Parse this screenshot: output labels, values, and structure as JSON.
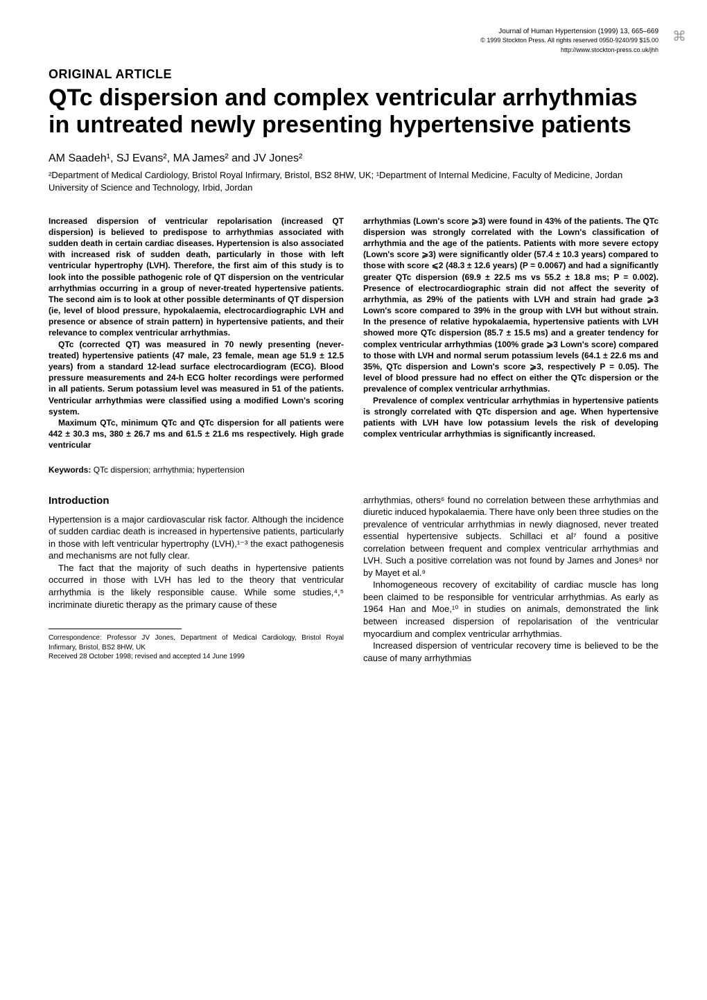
{
  "journal": {
    "line1": "Journal of Human Hypertension (1999) 13, 665–669",
    "line2": "© 1999 Stockton Press. All rights reserved 0950-9240/99 $15.00",
    "url": "http://www.stockton-press.co.uk/jhh"
  },
  "article_type": "ORIGINAL ARTICLE",
  "title": "QTc dispersion and complex ventricular arrhythmias in untreated newly presenting hypertensive patients",
  "authors": "AM Saadeh¹, SJ Evans², MA James² and JV Jones²",
  "affiliations": "²Department of Medical Cardiology, Bristol Royal Infirmary, Bristol, BS2 8HW, UK; ¹Department of Internal Medicine, Faculty of Medicine, Jordan University of Science and Technology, Irbid, Jordan",
  "abstract": {
    "left": {
      "p1": "Increased dispersion of ventricular repolarisation (increased QT dispersion) is believed to predispose to arrhythmias associated with sudden death in certain cardiac diseases. Hypertension is also associated with increased risk of sudden death, particularly in those with left ventricular hypertrophy (LVH). Therefore, the first aim of this study is to look into the possible pathogenic role of QT dispersion on the ventricular arrhythmias occurring in a group of never-treated hypertensive patients. The second aim is to look at other possible determinants of QT dispersion (ie, level of blood pressure, hypokalaemia, electrocardiographic LVH and presence or absence of strain pattern) in hypertensive patients, and their relevance to complex ventricular arrhythmias.",
      "p2": "QTc (corrected QT) was measured in 70 newly presenting (never-treated) hypertensive patients (47 male, 23 female, mean age 51.9 ± 12.5 years) from a standard 12-lead surface electrocardiogram (ECG). Blood pressure measurements and 24-h ECG holter recordings were performed in all patients. Serum potassium level was measured in 51 of the patients. Ventricular arrhythmias were classified using a modified Lown's scoring system.",
      "p3": "Maximum QTc, minimum QTc and QTc dispersion for all patients were 442 ± 30.3 ms, 380 ± 26.7 ms and 61.5 ± 21.6 ms respectively. High grade ventricular"
    },
    "right": {
      "p1": "arrhythmias (Lown's score ⩾3) were found in 43% of the patients. The QTc dispersion was strongly correlated with the Lown's classification of arrhythmia and the age of the patients. Patients with more severe ectopy (Lown's score ⩾3) were significantly older (57.4 ± 10.3 years) compared to those with score ⩽2 (48.3 ± 12.6 years) (P = 0.0067) and had a significantly greater QTc dispersion (69.9 ± 22.5 ms vs 55.2 ± 18.8 ms; P = 0.002). Presence of electrocardiographic strain did not affect the severity of arrhythmia, as 29% of the patients with LVH and strain had grade ⩾3 Lown's score compared to 39% in the group with LVH but without strain. In the presence of relative hypokalaemia, hypertensive patients with LVH showed more QTc dispersion (85.7 ± 15.5 ms) and a greater tendency for complex ventricular arrhythmias (100% grade ⩾3 Lown's score) compared to those with LVH and normal serum potassium levels (64.1 ± 22.6 ms and 35%, QTc dispersion and Lown's score ⩾3, respectively P = 0.05). The level of blood pressure had no effect on either the QTc dispersion or the prevalence of complex ventricular arrhythmias.",
      "p2": "Prevalence of complex ventricular arrhythmias in hypertensive patients is strongly correlated with QTc dispersion and age. When hypertensive patients with LVH have low potassium levels the risk of developing complex ventricular arrhythmias is significantly increased."
    }
  },
  "keywords_label": "Keywords:",
  "keywords_text": " QTc dispersion; arrhythmia; hypertension",
  "introduction": {
    "heading": "Introduction",
    "left": {
      "p1": "Hypertension is a major cardiovascular risk factor. Although the incidence of sudden cardiac death is increased in hypertensive patients, particularly in those with left ventricular hypertrophy (LVH),¹⁻³ the exact pathogenesis and mechanisms are not fully clear.",
      "p2": "The fact that the majority of such deaths in hypertensive patients occurred in those with LVH has led to the theory that ventricular arrhythmia is the likely responsible cause. While some studies,⁴,⁵ incriminate diuretic therapy as the primary cause of these"
    },
    "right": {
      "p1": "arrhythmias, others⁶ found no correlation between these arrhythmias and diuretic induced hypokalaemia. There have only been three studies on the prevalence of ventricular arrhythmias in newly diagnosed, never treated essential hypertensive subjects. Schillaci et al⁷ found a positive correlation between frequent and complex ventricular arrhythmias and LVH. Such a positive correlation was not found by James and Jones⁸ nor by Mayet et al.⁹",
      "p2": "Inhomogeneous recovery of excitability of cardiac muscle has long been claimed to be responsible for ventricular arrhythmias. As early as 1964 Han and Moe,¹⁰ in studies on animals, demonstrated the link between increased dispersion of repolarisation of the ventricular myocardium and complex ventricular arrhythmias.",
      "p3": "Increased dispersion of ventricular recovery time is believed to be the cause of many arrhythmias"
    }
  },
  "correspondence": {
    "line1": "Correspondence: Professor JV Jones, Department of Medical Cardiology, Bristol Royal Infirmary, Bristol, BS2 8HW, UK",
    "line2": "Received 28 October 1998; revised and accepted 14 June 1999"
  },
  "logo_glyph": "⌘"
}
